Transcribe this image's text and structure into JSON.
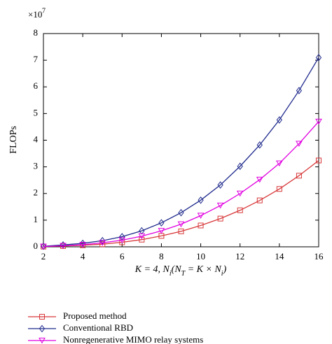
{
  "chart_data": {
    "type": "line",
    "ylabel": "FLOPs",
    "multiplier": "×10",
    "multiplier_exp": "7",
    "xlabel_parts": [
      "K = 4, N",
      "i",
      "(N",
      "T",
      " = K × N",
      "i",
      ")"
    ],
    "x": [
      2,
      3,
      4,
      5,
      6,
      7,
      8,
      9,
      10,
      11,
      12,
      13,
      14,
      15,
      16
    ],
    "xlim": [
      2,
      16
    ],
    "xticks": [
      2,
      4,
      6,
      8,
      10,
      12,
      14,
      16
    ],
    "ylim": [
      0,
      8
    ],
    "yticks": [
      0,
      1,
      2,
      3,
      4,
      5,
      6,
      7,
      8
    ],
    "series": [
      {
        "name": "Proposed method",
        "color": "#d8383a",
        "marker": "square",
        "values": [
          0.01,
          0.03,
          0.06,
          0.1,
          0.17,
          0.27,
          0.41,
          0.58,
          0.8,
          1.06,
          1.37,
          1.74,
          2.17,
          2.67,
          3.24
        ]
      },
      {
        "name": "Conventional RBD",
        "color": "#1f2a8c",
        "marker": "diamond",
        "values": [
          0.02,
          0.07,
          0.13,
          0.23,
          0.38,
          0.6,
          0.9,
          1.28,
          1.75,
          2.32,
          3.02,
          3.82,
          4.76,
          5.86,
          7.1
        ]
      },
      {
        "name": "Nonregenerative MIMO relay systems",
        "color": "#e000e0",
        "marker": "triangle",
        "values": [
          0.01,
          0.04,
          0.08,
          0.15,
          0.25,
          0.4,
          0.6,
          0.85,
          1.17,
          1.55,
          2.0,
          2.52,
          3.13,
          3.87,
          4.7
        ]
      }
    ]
  }
}
